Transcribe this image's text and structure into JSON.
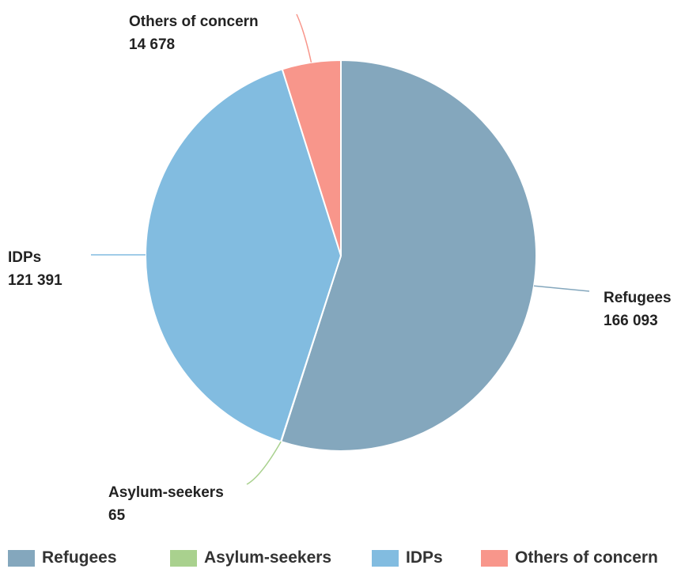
{
  "chart_data": {
    "type": "pie",
    "categories": [
      "Refugees",
      "Asylum-seekers",
      "IDPs",
      "Others of concern"
    ],
    "values": [
      166093,
      65,
      121391,
      14678
    ],
    "value_labels": [
      "166 093",
      "65",
      "121 391",
      "14 678"
    ],
    "colors": [
      "#84a7bd",
      "#a9d18e",
      "#82bce0",
      "#f8968b"
    ],
    "legend_position": "bottom-left"
  }
}
